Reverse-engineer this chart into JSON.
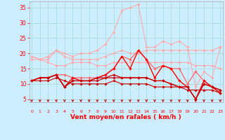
{
  "x": [
    0,
    1,
    2,
    3,
    4,
    5,
    6,
    7,
    8,
    9,
    10,
    11,
    12,
    13,
    14,
    15,
    16,
    17,
    18,
    19,
    20,
    21,
    22,
    23
  ],
  "series": [
    {
      "color": "#ffaaaa",
      "linewidth": 0.8,
      "marker": "D",
      "markersize": 1.8,
      "values": [
        19,
        18,
        19,
        21,
        20,
        19,
        20,
        20,
        21,
        23,
        27,
        34,
        35,
        36,
        22,
        22,
        24,
        23,
        24,
        22,
        9,
        14,
        12,
        22
      ]
    },
    {
      "color": "#ffaaaa",
      "linewidth": 0.8,
      "marker": "D",
      "markersize": 1.8,
      "values": [
        18,
        18,
        18,
        21,
        19,
        18,
        18,
        18,
        18,
        19,
        20,
        21,
        20,
        20,
        21,
        21,
        21,
        21,
        21,
        21,
        21,
        21,
        21,
        22
      ]
    },
    {
      "color": "#ffaaaa",
      "linewidth": 0.8,
      "marker": "D",
      "markersize": 1.8,
      "values": [
        19,
        18,
        17,
        16,
        16,
        17,
        17,
        17,
        16,
        16,
        17,
        17,
        17,
        17,
        17,
        17,
        17,
        17,
        17,
        17,
        16,
        16,
        16,
        15
      ]
    },
    {
      "color": "#ff6666",
      "linewidth": 0.9,
      "marker": "D",
      "markersize": 1.8,
      "values": [
        11,
        12,
        12,
        13,
        13,
        12,
        12,
        12,
        12,
        13,
        15,
        19,
        18,
        21,
        18,
        15,
        16,
        15,
        15,
        10,
        14,
        11,
        9,
        7
      ]
    },
    {
      "color": "#ff0000",
      "linewidth": 1.0,
      "marker": "D",
      "markersize": 1.8,
      "values": [
        11,
        12,
        12,
        13,
        9,
        12,
        11,
        11,
        12,
        13,
        15,
        19,
        15,
        21,
        18,
        12,
        16,
        15,
        11,
        9,
        5,
        11,
        9,
        7
      ]
    },
    {
      "color": "#cc0000",
      "linewidth": 0.9,
      "marker": "D",
      "markersize": 1.8,
      "values": [
        11,
        12,
        12,
        13,
        9,
        11,
        11,
        11,
        11,
        12,
        13,
        12,
        12,
        12,
        12,
        11,
        11,
        10,
        9,
        9,
        5,
        10,
        9,
        8
      ]
    },
    {
      "color": "#cc0000",
      "linewidth": 0.9,
      "marker": "D",
      "markersize": 1.8,
      "values": [
        11,
        12,
        12,
        13,
        9,
        11,
        11,
        11,
        12,
        12,
        12,
        12,
        12,
        12,
        12,
        11,
        11,
        10,
        9,
        9,
        5,
        10,
        9,
        8
      ]
    },
    {
      "color": "#cc0000",
      "linewidth": 0.8,
      "marker": "D",
      "markersize": 1.8,
      "values": [
        11,
        11,
        11,
        12,
        11,
        10,
        10,
        10,
        10,
        10,
        11,
        10,
        10,
        10,
        10,
        9,
        9,
        9,
        9,
        8,
        8,
        8,
        8,
        7
      ]
    }
  ],
  "xlabel": "Vent moyen/en rafales ( km/h )",
  "ylabel_ticks": [
    5,
    10,
    15,
    20,
    25,
    30,
    35
  ],
  "ylim": [
    4,
    37
  ],
  "xlim": [
    -0.3,
    23.3
  ],
  "bg_color": "#cceeff",
  "grid_color": "#aadddd",
  "tick_color": "#ff0000",
  "label_color": "#ff0000",
  "arrow_color": "#cc0000"
}
